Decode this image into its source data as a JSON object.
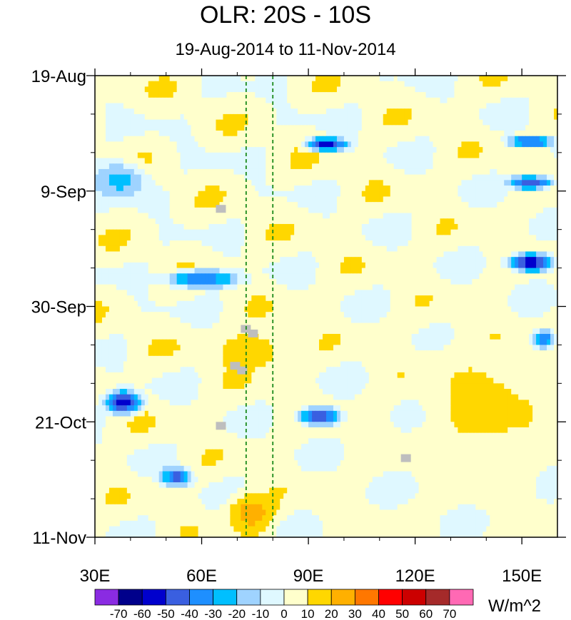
{
  "chart_data": {
    "type": "heatmap",
    "title": "OLR: 20S - 10S",
    "subtitle": "19-Aug-2014 to 11-Nov-2014",
    "x_axis": {
      "label": "",
      "range": [
        30,
        160
      ],
      "ticks": [
        30,
        60,
        90,
        120,
        150
      ],
      "tick_labels": [
        "30E",
        "60E",
        "90E",
        "120E",
        "150E"
      ]
    },
    "y_axis": {
      "label": "",
      "range": [
        "19-Aug-2014",
        "11-Nov-2014"
      ],
      "ticks_days": [
        0,
        21,
        42,
        63,
        84
      ],
      "tick_labels": [
        "19-Aug",
        "9-Sep",
        "30-Sep",
        "21-Oct",
        "11-Nov"
      ]
    },
    "reference_lines": [
      {
        "longitude": 72.5,
        "style": "dashed",
        "color": "#1a8a1a"
      },
      {
        "longitude": 80,
        "style": "dashed",
        "color": "#1a8a1a"
      }
    ],
    "colorbar": {
      "units": "W/m^2",
      "levels": [
        -70,
        -60,
        -50,
        -40,
        -30,
        -20,
        -10,
        0,
        10,
        20,
        30,
        40,
        50,
        60,
        70
      ],
      "colors": [
        "#8a2be2",
        "#00008b",
        "#0000cd",
        "#3a5fe0",
        "#1e8fff",
        "#00bfff",
        "#9fd3ff",
        "#dff8ff",
        "#ffffcc",
        "#ffd700",
        "#ffb000",
        "#ff7700",
        "#ff0000",
        "#cc0000",
        "#a52a2a",
        "#ff69b4"
      ]
    },
    "missing_color": "#bebebe",
    "features": [
      {
        "lon_from": 28,
        "lon_to": 46,
        "day_from": 15,
        "day_to": 23,
        "value": -25
      },
      {
        "lon_from": 48,
        "lon_to": 72,
        "day_from": 35,
        "day_to": 39,
        "value": -40
      },
      {
        "lon_from": 88,
        "lon_to": 102,
        "day_from": 11,
        "day_to": 14,
        "value": -55
      },
      {
        "lon_from": 145,
        "lon_to": 160,
        "day_from": 32,
        "day_to": 36,
        "value": -60
      },
      {
        "lon_from": 145,
        "lon_to": 160,
        "day_from": 11,
        "day_to": 13,
        "value": -55
      },
      {
        "lon_from": 145,
        "lon_to": 160,
        "day_from": 18,
        "day_to": 21,
        "value": -50
      },
      {
        "lon_from": 32,
        "lon_to": 44,
        "day_from": 57,
        "day_to": 62,
        "value": -55
      },
      {
        "lon_from": 48,
        "lon_to": 58,
        "day_from": 71,
        "day_to": 75,
        "value": -45
      },
      {
        "lon_from": 86,
        "lon_to": 100,
        "day_from": 60,
        "day_to": 64,
        "value": -50
      },
      {
        "lon_from": 152,
        "lon_to": 160,
        "day_from": 46,
        "day_to": 50,
        "value": -45
      },
      {
        "lon_from": 66,
        "lon_to": 82,
        "day_from": 75,
        "day_to": 84,
        "value": 25
      },
      {
        "lon_from": 60,
        "lon_to": 88,
        "day_from": 45,
        "day_to": 55,
        "value": 15
      },
      {
        "lon_from": 120,
        "lon_to": 160,
        "day_from": 45,
        "day_to": 75,
        "value": 12
      }
    ]
  }
}
